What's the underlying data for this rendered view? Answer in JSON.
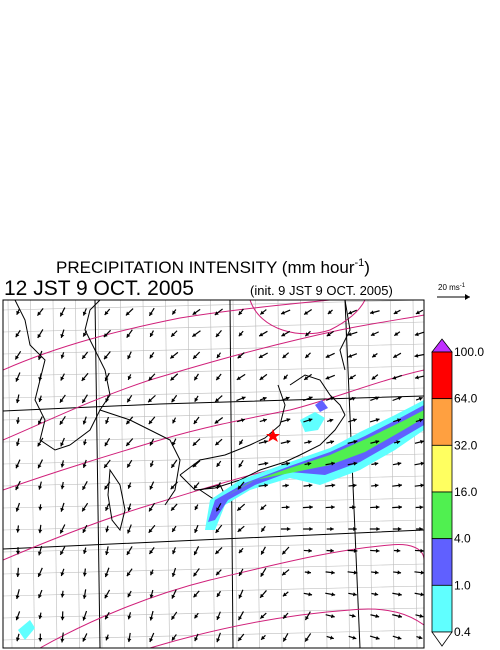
{
  "header": {
    "title_text": "PRECIPITATION INTENSITY (mm hour",
    "title_exponent": "-1",
    "title_close": ")",
    "valid_time": "12 JST 9 OCT. 2005",
    "init_time": "(init. 9 JST 9 OCT. 2005)"
  },
  "wind_key": {
    "label": "20 ms",
    "exponent": "-1"
  },
  "colorbar": {
    "levels": [
      {
        "label": "100.0",
        "color": "#ff0000"
      },
      {
        "label": "64.0",
        "color": "#ffa040"
      },
      {
        "label": "32.0",
        "color": "#ffff60"
      },
      {
        "label": "16.0",
        "color": "#50f050"
      },
      {
        "label": "4.0",
        "color": "#6060ff"
      },
      {
        "label": "1.0",
        "color": "#60ffff"
      },
      {
        "label": "0.4",
        "color": "#ffffff"
      }
    ],
    "top_color": "#c030ff"
  }
}
